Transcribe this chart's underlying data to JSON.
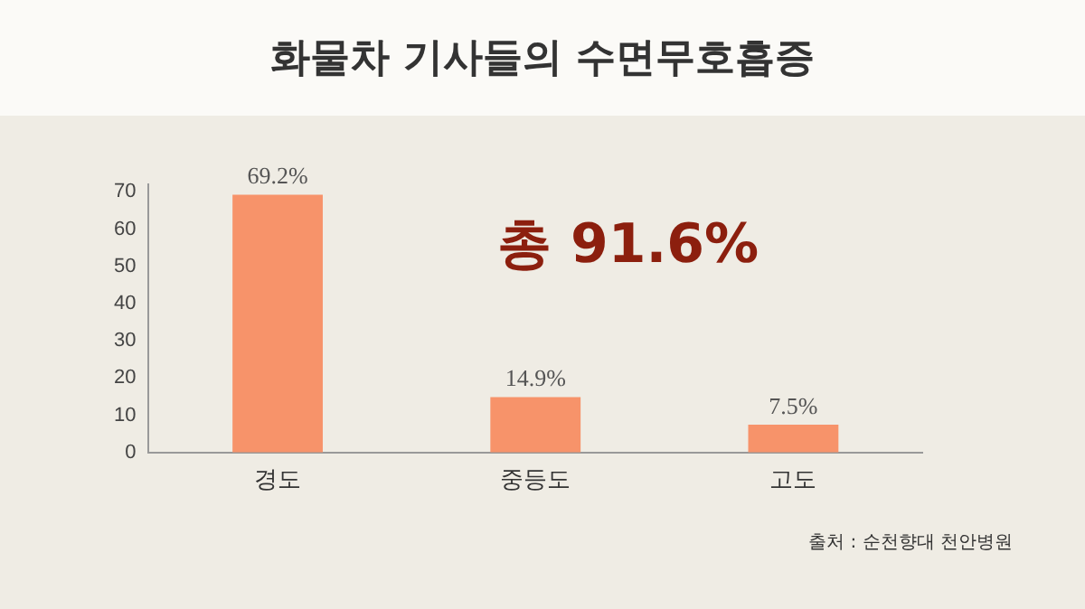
{
  "chart_data": {
    "type": "bar",
    "title": "화물차 기사들의 수면무호흡증",
    "categories": [
      "경도",
      "중등도",
      "고도"
    ],
    "values": [
      69.2,
      14.9,
      7.5
    ],
    "value_labels": [
      "69.2%",
      "14.9%",
      "7.5%"
    ],
    "color": "#f7936a",
    "ylim": [
      0,
      72
    ],
    "yticks": [
      0,
      10,
      20,
      30,
      40,
      50,
      60,
      70
    ],
    "grid": false,
    "legend": false,
    "annotations": [
      "총 91.6%",
      "출처 : 순천향대 천안병원"
    ]
  }
}
